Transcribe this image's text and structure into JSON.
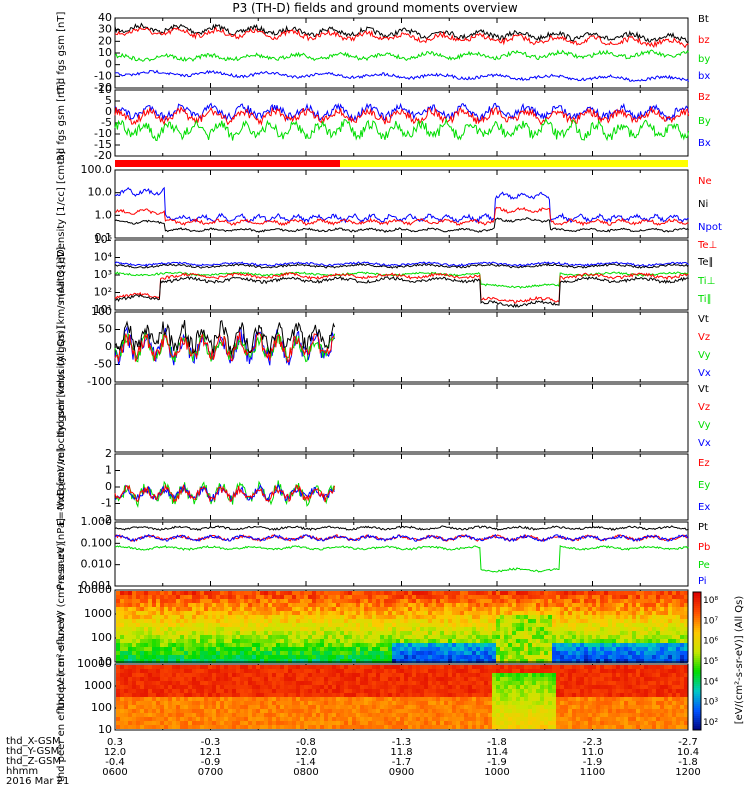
{
  "title": "P3 (TH-D) fields and ground moments overview",
  "date": "2016 Mar 21",
  "colors": {
    "black": "#000000",
    "red": "#ff0000",
    "green": "#00dd00",
    "blue": "#0000ff",
    "yellow": "#ffff00"
  },
  "chart_data": [
    {
      "type": "line",
      "panel": "fgs_gsm_total",
      "ylabel": "thd fgs gsm [nT]",
      "ylim": [
        -20,
        40
      ],
      "yticks": [
        "40",
        "30",
        "20",
        "10",
        "0",
        "-10",
        "-20"
      ],
      "series": [
        {
          "name": "Bt",
          "color": "#000000",
          "values_approx": [
            30,
            29,
            26,
            27,
            26,
            25,
            24,
            24,
            24,
            23,
            22,
            22,
            22
          ]
        },
        {
          "name": "bz",
          "color": "#ff0000",
          "values_approx": [
            28,
            27,
            24,
            25,
            24,
            22,
            22,
            21,
            21,
            21,
            20,
            19,
            18
          ]
        },
        {
          "name": "by",
          "color": "#00dd00",
          "values_approx": [
            10,
            10,
            9,
            10,
            8,
            8,
            9,
            11,
            11,
            12,
            13,
            14,
            14
          ]
        },
        {
          "name": "bx",
          "color": "#0000ff",
          "values_approx": [
            -6,
            -5,
            -6,
            -5,
            -7,
            -9,
            -10,
            -11,
            -11,
            -10,
            -10,
            -9,
            -9
          ]
        }
      ]
    },
    {
      "type": "line",
      "panel": "fgs_gsm_detrended",
      "ylabel": "thd fgs gsm [nT]",
      "ylim": [
        -20,
        10
      ],
      "yticks": [
        "10",
        "5",
        "0",
        "-5",
        "-10",
        "-15",
        "-20"
      ],
      "series": [
        {
          "name": "Bz",
          "color": "#ff0000"
        },
        {
          "name": "By",
          "color": "#00dd00"
        },
        {
          "name": "Bx",
          "color": "#0000ff"
        }
      ]
    },
    {
      "type": "line",
      "panel": "density",
      "ylabel": "Density [1/cc] [cm-3]",
      "scale": "log",
      "ylim": [
        0.1,
        100
      ],
      "yticks": [
        "100.0",
        "10.0",
        "1.0",
        "0.1"
      ],
      "series": [
        {
          "name": "Ne",
          "color": "#ff0000",
          "values_approx": [
            2,
            0.9,
            0.9,
            0.9,
            0.9,
            0.9,
            1,
            1,
            1,
            4,
            1,
            1,
            1
          ]
        },
        {
          "name": "Ni",
          "color": "#000000",
          "values_approx": [
            1,
            0.5,
            0.5,
            0.5,
            0.5,
            0.5,
            0.5,
            0.5,
            0.5,
            2,
            0.5,
            0.5,
            0.5
          ]
        },
        {
          "name": "Npot",
          "color": "#0000ff",
          "values_approx": [
            6,
            1.2,
            1.3,
            1.4,
            1.5,
            1.4,
            1.4,
            1.5,
            1.5,
            20,
            1.5,
            1.5,
            1.6
          ]
        }
      ]
    },
    {
      "type": "line",
      "panel": "temperature",
      "ylabel": "moat3 [eV]",
      "scale": "log",
      "ylim": [
        10,
        100000
      ],
      "yticks": [
        "10⁵",
        "10⁴",
        "10³",
        "10²",
        "10¹"
      ],
      "series": [
        {
          "name": "Te⊥",
          "color": "#ff0000"
        },
        {
          "name": "Te∥",
          "color": "#000000"
        },
        {
          "name": "Ti⊥",
          "color": "#00dd00"
        },
        {
          "name": "Ti∥",
          "color": "#00dd00"
        }
      ]
    },
    {
      "type": "line",
      "panel": "peir_velocity",
      "ylabel": "thd peir velocity gsm [km/s (All Qs)]",
      "ylim": [
        -100,
        100
      ],
      "yticks": [
        "100",
        "50",
        "0",
        "-50",
        "-100"
      ],
      "series": [
        {
          "name": "Vt",
          "color": "#000000"
        },
        {
          "name": "Vz",
          "color": "#ff0000"
        },
        {
          "name": "Vy",
          "color": "#00dd00"
        },
        {
          "name": "Vx",
          "color": "#0000ff"
        }
      ]
    },
    {
      "type": "line",
      "panel": "peer_velocity",
      "ylabel": "thd peer velocity gsm [km/s (All Qs)]",
      "series": [
        {
          "name": "Vt",
          "color": "#000000"
        },
        {
          "name": "Vz",
          "color": "#ff0000"
        },
        {
          "name": "Vy",
          "color": "#00dd00"
        },
        {
          "name": "Vx",
          "color": "#0000ff"
        }
      ]
    },
    {
      "type": "line",
      "panel": "efield",
      "ylabel": "E=-VxB [mV/m]",
      "ylim": [
        -2,
        2
      ],
      "yticks": [
        "2",
        "1",
        "0",
        "-1",
        "-2"
      ],
      "series": [
        {
          "name": "Ez",
          "color": "#ff0000"
        },
        {
          "name": "Ey",
          "color": "#00dd00"
        },
        {
          "name": "Ex",
          "color": "#0000ff"
        }
      ]
    },
    {
      "type": "line",
      "panel": "pressure",
      "ylabel": "Pressure [nPa]",
      "scale": "log",
      "ylim": [
        0.001,
        1
      ],
      "yticks": [
        "1.000",
        "0.100",
        "0.010",
        "0.001"
      ],
      "series": [
        {
          "name": "Pt",
          "color": "#000000"
        },
        {
          "name": "Pb",
          "color": "#ff0000"
        },
        {
          "name": "Pe",
          "color": "#00dd00"
        },
        {
          "name": "Pi",
          "color": "#0000ff"
        }
      ]
    },
    {
      "type": "heatmap",
      "panel": "peir_eflux",
      "ylabel": "thd peir en eflux eV (cm²-s-sr-eV)",
      "yticks": [
        "10000",
        "1000",
        "100",
        "10"
      ]
    },
    {
      "type": "heatmap",
      "panel": "peer_eflux",
      "ylabel": "thd peer en eflux eV (cm²-s-sr-eV)",
      "yticks": [
        "10000",
        "1000",
        "100",
        "10"
      ]
    }
  ],
  "colorbar": {
    "label": "[eV/(cm²-s-sr-eV)] (All Qs)",
    "ticks": [
      "10⁸",
      "10⁷",
      "10⁶",
      "10⁵",
      "10⁴",
      "10³",
      "10²"
    ]
  },
  "footer": {
    "rows": [
      {
        "label": "thd_X-GSM",
        "values": [
          "0.3",
          "-0.3",
          "-0.8",
          "-1.3",
          "-1.8",
          "-2.3",
          "-2.7"
        ]
      },
      {
        "label": "thd_Y-GSM",
        "values": [
          "12.0",
          "12.1",
          "12.0",
          "11.8",
          "11.4",
          "11.0",
          "10.4"
        ]
      },
      {
        "label": "thd_Z-GSM",
        "values": [
          "-0.4",
          "-0.9",
          "-1.4",
          "-1.7",
          "-1.9",
          "-1.9",
          "-1.8"
        ]
      },
      {
        "label": "hhmm",
        "values": [
          "0600",
          "0700",
          "0800",
          "0900",
          "1000",
          "1100",
          "1200"
        ]
      }
    ]
  },
  "ylabels_text": [
    "thd fgs gsm [nT]",
    "thd fgs gsm [nT]",
    "Density [1/cc] [cm-3]",
    "moat3 [eV]",
    "thd peir velocity gsm [km/s (All Qs)]",
    "thd peer velocity gsm [km/s (All Qs)]",
    "E=-VxB [mV/m]",
    "Pressure [nPa]",
    "thd peir en eflux eV (cm²-s-sr-eV)",
    "thd peer en eflux eV (cm²-s-sr-eV)"
  ]
}
